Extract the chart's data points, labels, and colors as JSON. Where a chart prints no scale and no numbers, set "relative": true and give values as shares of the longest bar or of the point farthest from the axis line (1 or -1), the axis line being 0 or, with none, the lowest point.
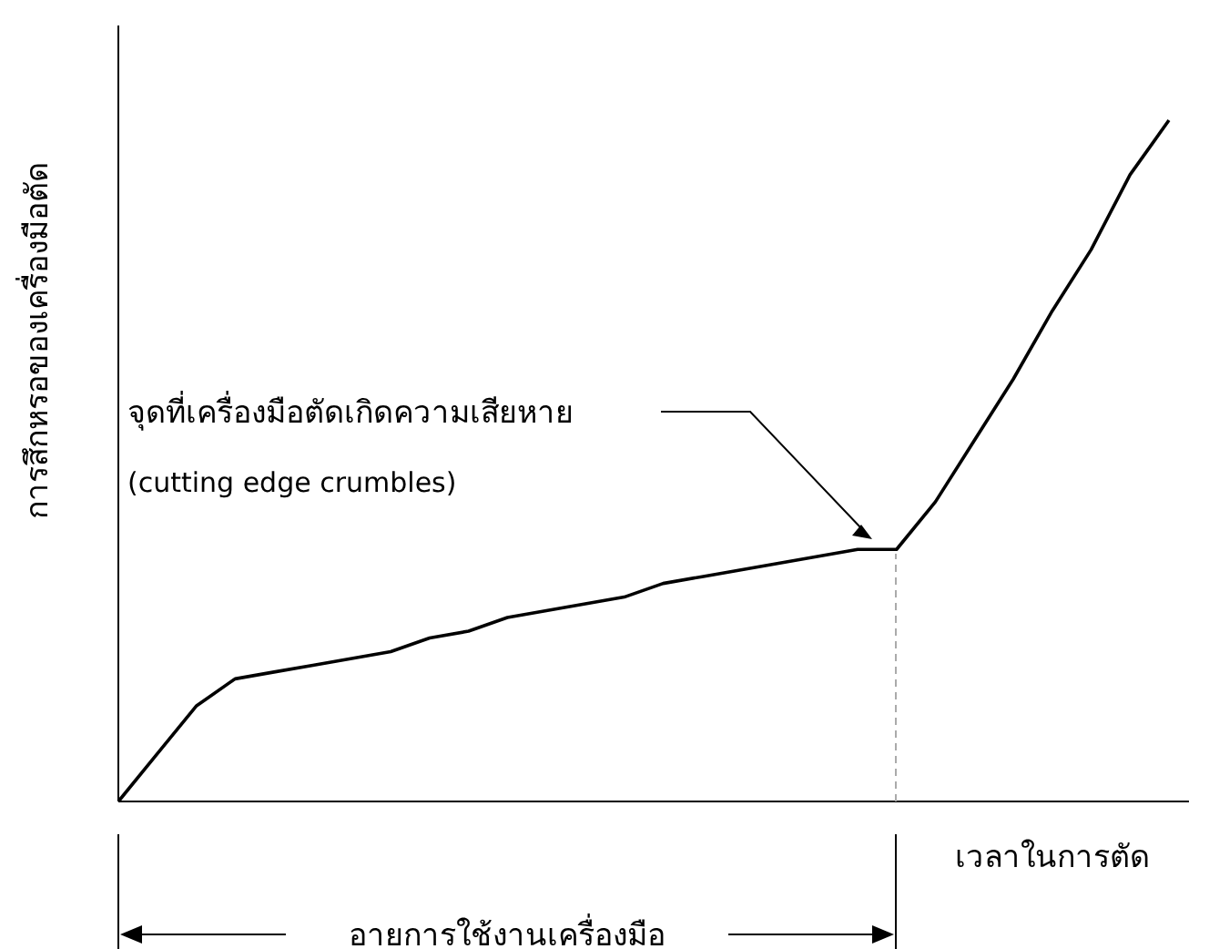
{
  "chart_data": {
    "type": "line",
    "relative": true,
    "ylabel": "การสึกหรอของเครื่องมือตัด",
    "xlabel": "เวลาในการตัด",
    "categories": [
      null,
      null,
      null,
      null,
      null,
      null,
      null,
      null,
      null,
      null,
      null,
      null,
      null,
      null,
      null,
      null,
      null,
      null,
      null,
      null,
      null,
      null,
      null,
      null,
      null,
      null,
      null,
      null
    ],
    "marker": "none",
    "line_style": "solid",
    "series": [
      {
        "color": "#000000",
        "values": [
          0,
          0.07,
          0.14,
          0.18,
          0.19,
          0.2,
          0.21,
          0.22,
          0.24,
          0.25,
          0.27,
          0.28,
          0.29,
          0.3,
          0.32,
          0.33,
          0.34,
          0.35,
          0.36,
          0.37,
          0.37,
          0.44,
          0.53,
          0.62,
          0.72,
          0.81,
          0.92,
          1
        ]
      }
    ],
    "annotations": [
      "จุดที่เครื่องมือตัดเกิดความเสียหาย",
      "(cutting edge crumbles)",
      "อายการใช้งานเครื่องมือ"
    ]
  }
}
